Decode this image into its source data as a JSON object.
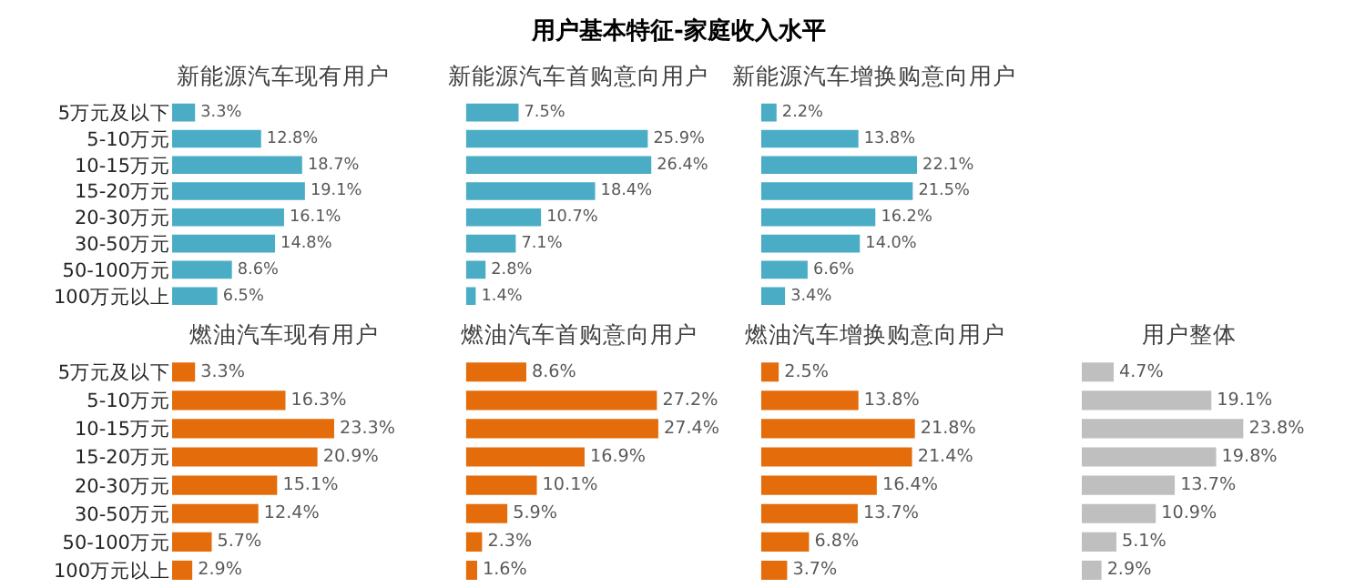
{
  "chart_data": [
    {
      "type": "bar",
      "orientation": "horizontal",
      "title": "新能源汽车现有用户",
      "annotations": [
        "用户基本特征-家庭收入水平"
      ],
      "categories": [
        "5万元及以下",
        "5-10万元",
        "10-15万元",
        "15-20万元",
        "20-30万元",
        "30-50万元",
        "50-100万元",
        "100万元以上"
      ],
      "color": "#4bacc6",
      "values": [
        3.3,
        12.8,
        18.7,
        19.1,
        16.1,
        14.8,
        8.6,
        6.5
      ],
      "value_labels": [
        "3.3%",
        "12.8%",
        "18.7%",
        "19.1%",
        "16.1%",
        "14.8%",
        "8.6%",
        "6.5%"
      ],
      "tick_labels": "y"
    },
    {
      "type": "bar",
      "orientation": "horizontal",
      "title": "新能源汽车首购意向用户",
      "categories": [
        null,
        null,
        null,
        null,
        null,
        null,
        null,
        null
      ],
      "color": "#4bacc6",
      "values": [
        7.5,
        25.9,
        26.4,
        18.4,
        10.7,
        7.1,
        2.8,
        1.4
      ],
      "value_labels": [
        "7.5%",
        "25.9%",
        "26.4%",
        "18.4%",
        "10.7%",
        "7.1%",
        "2.8%",
        "1.4%"
      ],
      "tick_labels": false
    },
    {
      "type": "bar",
      "orientation": "horizontal",
      "title": "新能源汽车增换购意向用户",
      "categories": [
        null,
        null,
        null,
        null,
        null,
        null,
        null,
        null
      ],
      "color": "#4bacc6",
      "values": [
        2.2,
        13.8,
        22.1,
        21.5,
        16.2,
        14.0,
        6.6,
        3.4
      ],
      "value_labels": [
        "2.2%",
        "13.8%",
        "22.1%",
        "21.5%",
        "16.2%",
        "14.0%",
        "6.6%",
        "3.4%"
      ],
      "tick_labels": false
    },
    {
      "type": "bar",
      "orientation": "horizontal",
      "title": "燃油汽车现有用户",
      "categories": [
        "5万元及以下",
        "5-10万元",
        "10-15万元",
        "15-20万元",
        "20-30万元",
        "30-50万元",
        "50-100万元",
        "100万元以上"
      ],
      "color": "#e46c0a",
      "values": [
        3.3,
        16.3,
        23.3,
        20.9,
        15.1,
        12.4,
        5.7,
        2.9
      ],
      "value_labels": [
        "3.3%",
        "16.3%",
        "23.3%",
        "20.9%",
        "15.1%",
        "12.4%",
        "5.7%",
        "2.9%"
      ],
      "tick_labels": "y"
    },
    {
      "type": "bar",
      "orientation": "horizontal",
      "title": "燃油汽车首购意向用户",
      "categories": [
        null,
        null,
        null,
        null,
        null,
        null,
        null,
        null
      ],
      "color": "#e46c0a",
      "values": [
        8.6,
        27.2,
        27.4,
        16.9,
        10.1,
        5.9,
        2.3,
        1.6
      ],
      "value_labels": [
        "8.6%",
        "27.2%",
        "27.4%",
        "16.9%",
        "10.1%",
        "5.9%",
        "2.3%",
        "1.6%"
      ],
      "tick_labels": false
    },
    {
      "type": "bar",
      "orientation": "horizontal",
      "title": "燃油汽车增换购意向用户",
      "categories": [
        null,
        null,
        null,
        null,
        null,
        null,
        null,
        null
      ],
      "color": "#e46c0a",
      "values": [
        2.5,
        13.8,
        21.8,
        21.4,
        16.4,
        13.7,
        6.8,
        3.7
      ],
      "value_labels": [
        "2.5%",
        "13.8%",
        "21.8%",
        "21.4%",
        "16.4%",
        "13.7%",
        "6.8%",
        "3.7%"
      ],
      "tick_labels": false
    },
    {
      "type": "bar",
      "orientation": "horizontal",
      "title": "用户整体",
      "categories": [
        null,
        null,
        null,
        null,
        null,
        null,
        null,
        null
      ],
      "color": "#bfbfbf",
      "values": [
        4.7,
        19.1,
        23.8,
        19.8,
        13.7,
        10.9,
        5.1,
        2.9
      ],
      "value_labels": [
        "4.7%",
        "19.1%",
        "23.8%",
        "19.8%",
        "13.7%",
        "10.9%",
        "5.1%",
        "2.9%"
      ],
      "tick_labels": false
    }
  ]
}
